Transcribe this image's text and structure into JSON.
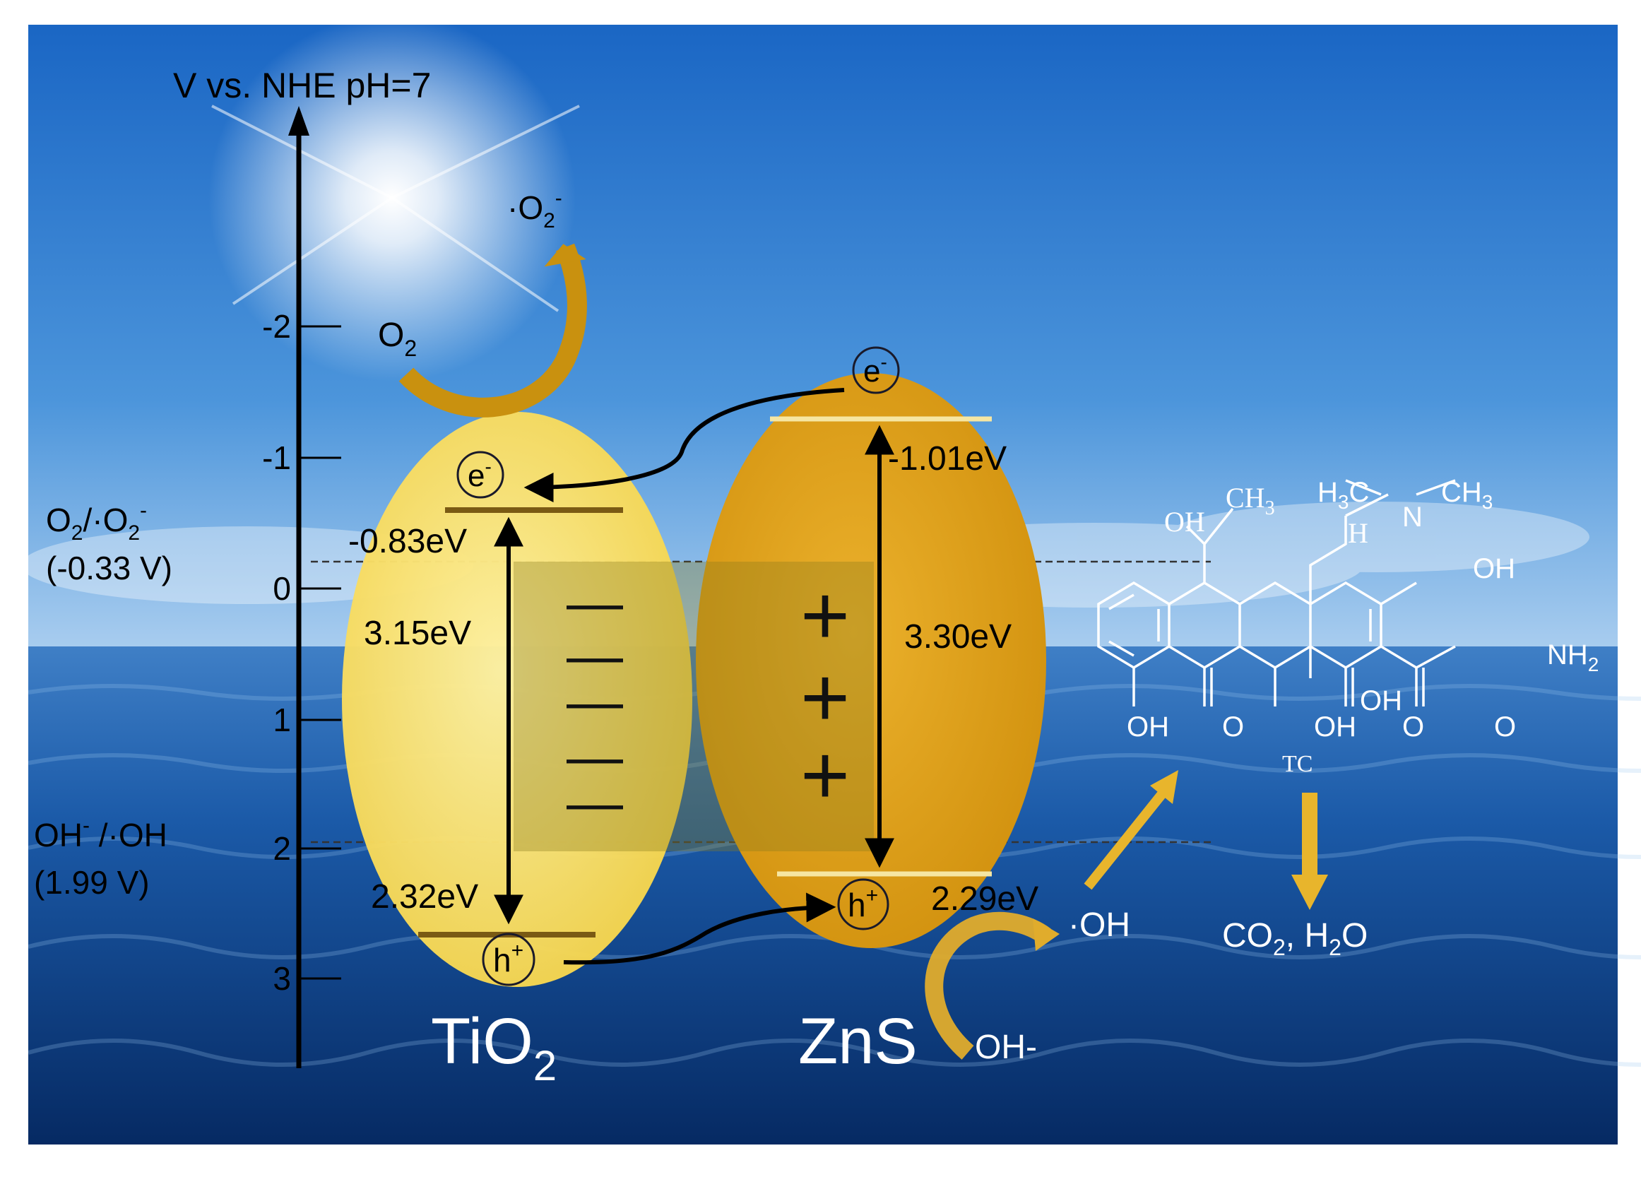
{
  "axis": {
    "title": "V vs. NHE  pH=7",
    "ticks": [
      "-2",
      "-1",
      "0",
      "1",
      "2",
      "3"
    ]
  },
  "references": {
    "o2": {
      "line1_main": "O",
      "line1_sub": "2",
      "line1_mid": "/·O",
      "line1_sub2": "2",
      "line1_sup": "-",
      "line2": "(-0.33 V)"
    },
    "oh": {
      "line1_main": "OH",
      "line1_sup": "-",
      "line1_rest": " /·OH",
      "line2": "(1.99 V)"
    }
  },
  "tio2": {
    "name_main": "TiO",
    "name_sub": "2",
    "cb": "-0.83eV",
    "vb": "2.32eV",
    "gap": "3.15eV",
    "electron": "e",
    "electron_sup": "-",
    "hole": "h",
    "hole_sup": "+",
    "charge_glyphs": [
      "—",
      "—",
      "—",
      "—",
      "—"
    ]
  },
  "zns": {
    "name": "ZnS",
    "cb": "-1.01eV",
    "vb": "2.29eV",
    "gap": "3.30eV",
    "electron": "e",
    "electron_sup": "-",
    "hole": "h",
    "hole_sup": "+",
    "charge_glyphs": [
      "+",
      "+",
      "+"
    ]
  },
  "reactions": {
    "o2_in_main": "O",
    "o2_in_sub": "2",
    "o2_out_dot": "·",
    "o2_out_main": "O",
    "o2_out_sub": "2",
    "o2_out_sup": "-",
    "oh_radical": "·OH",
    "oh_minus": "OH-",
    "products": {
      "co2_main": "CO",
      "co2_sub": "2",
      "sep": ",  ",
      "h2o_main": "H",
      "h2o_sub": "2",
      "h2o_rest": "O"
    }
  },
  "molecule": {
    "label": "TC",
    "oh_top": "OH",
    "ch3_top": "CH",
    "ch3_top_sub": "3",
    "h3c_main": "H",
    "h3c_sub": "3",
    "h3c_rest": "C",
    "n": "N",
    "ch3_right": "CH",
    "ch3_right_sub": "3",
    "h_mid": "H",
    "oh_right": "OH",
    "nh2_main": "NH",
    "nh2_sub": "2",
    "oh_b1": "OH",
    "o_b1": "O",
    "oh_b2": "OH",
    "oh_b3": "OH",
    "o_b2": "O",
    "o_b3": "O"
  },
  "colors": {
    "tio2_fill": "#fde46a",
    "zns_fill": "#e3a416",
    "arrow_gold": "#e8b52c",
    "sky": "#2f7fd3",
    "sea": "#0c3f86"
  }
}
